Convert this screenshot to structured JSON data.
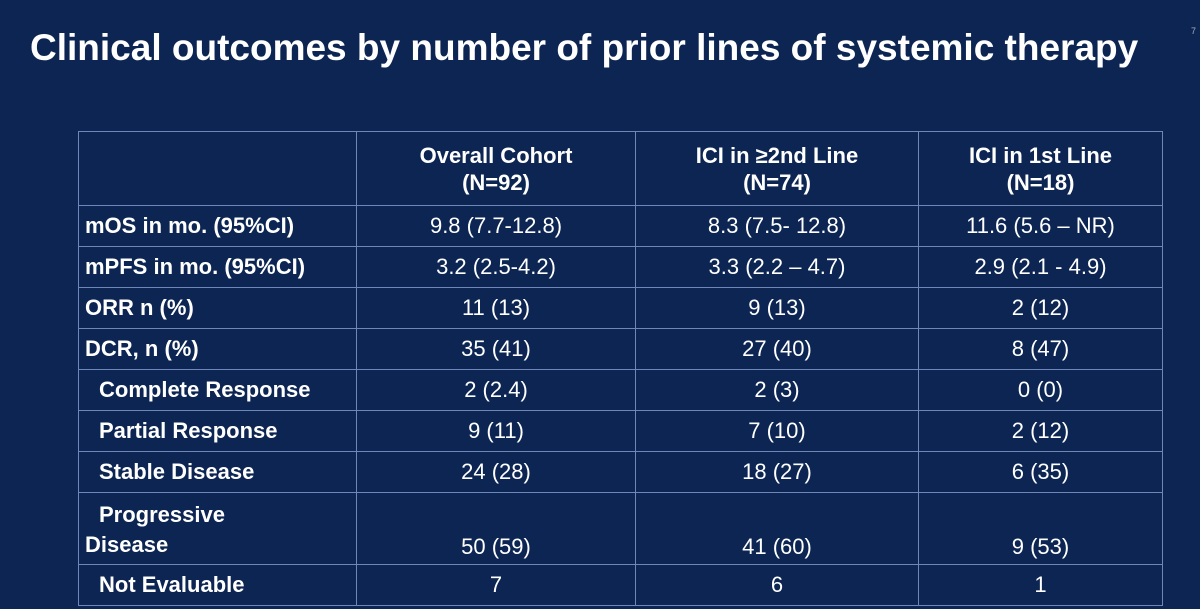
{
  "title": "Clinical outcomes by number of prior lines of systemic therapy",
  "page_number": "7",
  "table": {
    "header": [
      [
        "Overall Cohort",
        "(N=92)"
      ],
      [
        "ICI in ≥2nd Line",
        "(N=74)"
      ],
      [
        "ICI in 1st Line",
        "(N=18)"
      ]
    ],
    "rows": [
      [
        "mOS in mo. (95%CI)",
        "9.8 (7.7-12.8)",
        "8.3 (7.5- 12.8)",
        "11.6 (5.6 – NR)"
      ],
      [
        "mPFS in mo. (95%CI)",
        "3.2 (2.5-4.2)",
        "3.3 (2.2 – 4.7)",
        "2.9 (2.1 - 4.9)"
      ],
      [
        "ORR n (%)",
        "11 (13)",
        "9 (13)",
        "2 (12)"
      ],
      [
        "DCR, n (%)",
        "35 (41)",
        "27 (40)",
        "8 (47)"
      ],
      [
        "Complete Response",
        "2 (2.4)",
        "2 (3)",
        "0 (0)"
      ],
      [
        "Partial Response",
        "9 (11)",
        "7 (10)",
        "2 (12)"
      ],
      [
        "Stable Disease",
        "24 (28)",
        "18 (27)",
        "6 (35)"
      ],
      [
        "Progressive Disease",
        "50 (59)",
        "41 (60)",
        "9 (53)"
      ],
      [
        "Not Evaluable",
        "7",
        "6",
        "1"
      ]
    ]
  }
}
